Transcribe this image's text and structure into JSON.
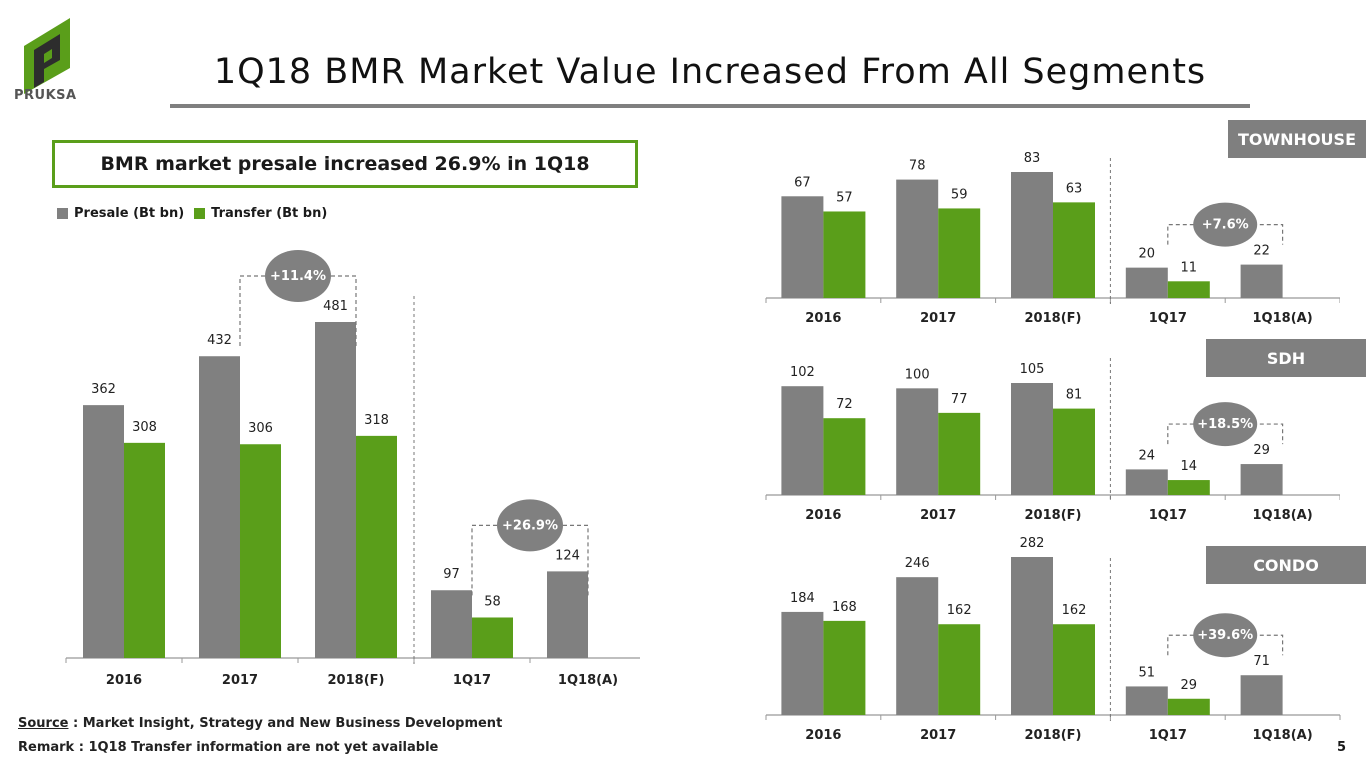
{
  "brand": {
    "name": "PRUKSA",
    "color": "#5a9e1a"
  },
  "title": "1Q18 BMR Market Value Increased From All Segments",
  "callout": "BMR market presale increased 26.9% in 1Q18",
  "legend": {
    "presale": "Presale (Bt bn)",
    "transfer": "Transfer (Bt bn)"
  },
  "colors": {
    "presale": "#808080",
    "transfer": "#5a9e1a",
    "bubble": "#808080"
  },
  "footer": {
    "source_label": "Source",
    "source_text": " : Market Insight, Strategy and New Business Development",
    "remark": "Remark : 1Q18 Transfer information are not yet available"
  },
  "page_number": "5",
  "chart_data": [
    {
      "id": "total",
      "type": "bar",
      "title": "",
      "categories": [
        "2016",
        "2017",
        "2018(F)",
        "1Q17",
        "1Q18(A)"
      ],
      "series": [
        {
          "name": "Presale (Bt bn)",
          "values": [
            362,
            432,
            481,
            97,
            124
          ]
        },
        {
          "name": "Transfer (Bt bn)",
          "values": [
            308,
            306,
            318,
            58,
            null
          ]
        }
      ],
      "annotations": [
        {
          "label": "+11.4%",
          "from": 1,
          "to": 2
        },
        {
          "label": "+26.9%",
          "from": 3,
          "to": 4
        }
      ]
    },
    {
      "id": "townhouse",
      "type": "bar",
      "title": "TOWNHOUSE",
      "categories": [
        "2016",
        "2017",
        "2018(F)",
        "1Q17",
        "1Q18(A)"
      ],
      "series": [
        {
          "name": "Presale (Bt bn)",
          "values": [
            67,
            78,
            83,
            20,
            22
          ]
        },
        {
          "name": "Transfer (Bt bn)",
          "values": [
            57,
            59,
            63,
            11,
            null
          ]
        }
      ],
      "annotations": [
        {
          "label": "+7.6%",
          "from": 3,
          "to": 4
        }
      ]
    },
    {
      "id": "sdh",
      "type": "bar",
      "title": "SDH",
      "categories": [
        "2016",
        "2017",
        "2018(F)",
        "1Q17",
        "1Q18(A)"
      ],
      "series": [
        {
          "name": "Presale (Bt bn)",
          "values": [
            102,
            100,
            105,
            24,
            29
          ]
        },
        {
          "name": "Transfer (Bt bn)",
          "values": [
            72,
            77,
            81,
            14,
            null
          ]
        }
      ],
      "annotations": [
        {
          "label": "+18.5%",
          "from": 3,
          "to": 4
        }
      ]
    },
    {
      "id": "condo",
      "type": "bar",
      "title": "CONDO",
      "categories": [
        "2016",
        "2017",
        "2018(F)",
        "1Q17",
        "1Q18(A)"
      ],
      "series": [
        {
          "name": "Presale (Bt bn)",
          "values": [
            184,
            246,
            282,
            51,
            71
          ]
        },
        {
          "name": "Transfer (Bt bn)",
          "values": [
            168,
            162,
            162,
            29,
            null
          ]
        }
      ],
      "annotations": [
        {
          "label": "+39.6%",
          "from": 3,
          "to": 4
        }
      ]
    }
  ]
}
